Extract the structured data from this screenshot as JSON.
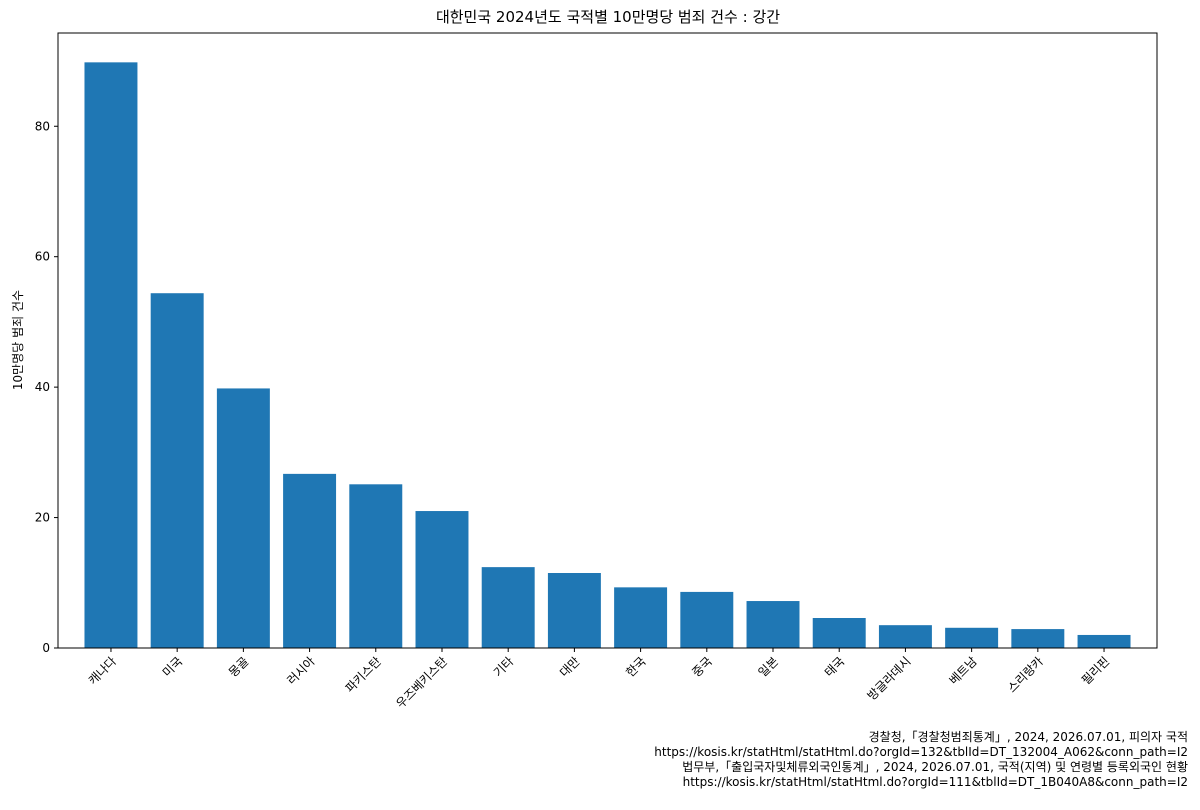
{
  "chart_data": {
    "type": "bar",
    "title": "대한민국 2024년도 국적별 10만명당 범죄 건수 : 강간",
    "ylabel": "10만명당 범죄 건수",
    "categories": [
      "캐나다",
      "미국",
      "몽골",
      "러시아",
      "파키스탄",
      "우즈베키스탄",
      "기타",
      "대만",
      "한국",
      "중국",
      "일본",
      "태국",
      "방글라데시",
      "베트남",
      "스리랑카",
      "필리핀"
    ],
    "values": [
      89.8,
      54.4,
      39.8,
      26.7,
      25.1,
      21.0,
      12.4,
      11.5,
      9.3,
      8.6,
      7.2,
      4.6,
      3.5,
      3.1,
      2.9,
      2.0
    ],
    "color": "#1f77b4",
    "ylim": [
      0,
      94.3
    ],
    "yticks": [
      0,
      20,
      40,
      60,
      80
    ],
    "grid": false,
    "source": [
      "경찰청,「경찰청범죄통계」, 2024, 2026.07.01, 피의자 국적",
      "https://kosis.kr/statHtml/statHtml.do?orgId=132&tblId=DT_132004_A062&conn_path=I2",
      "법무부,「출입국자및체류외국인통계」, 2024, 2026.07.01, 국적(지역) 및 연령별 등록외국인 현황",
      "https://kosis.kr/statHtml/statHtml.do?orgId=111&tblId=DT_1B040A8&conn_path=I2"
    ]
  }
}
